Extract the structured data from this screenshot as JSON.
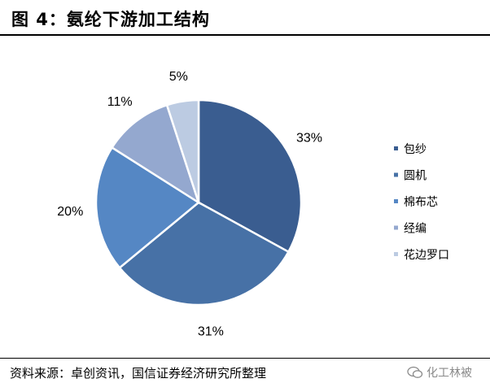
{
  "figure": {
    "title": "图 4：氨纶下游加工结构",
    "source": "资料来源：卓创资讯，国信证券经济研究所整理",
    "watermark": "化工林被"
  },
  "colors": {
    "包纱": "#3a5d90",
    "圆机": "#4771a6",
    "棉布芯": "#5587c4",
    "经编": "#94a8cf",
    "花边罗口": "#bccbe2"
  },
  "chart_data": {
    "type": "pie",
    "categories": [
      "包纱",
      "圆机",
      "棉布芯",
      "经编",
      "花边罗口"
    ],
    "values": [
      33,
      31,
      20,
      11,
      5
    ],
    "labels": [
      "33%",
      "31%",
      "20%",
      "11%",
      "5%"
    ],
    "legend_position": "right"
  }
}
